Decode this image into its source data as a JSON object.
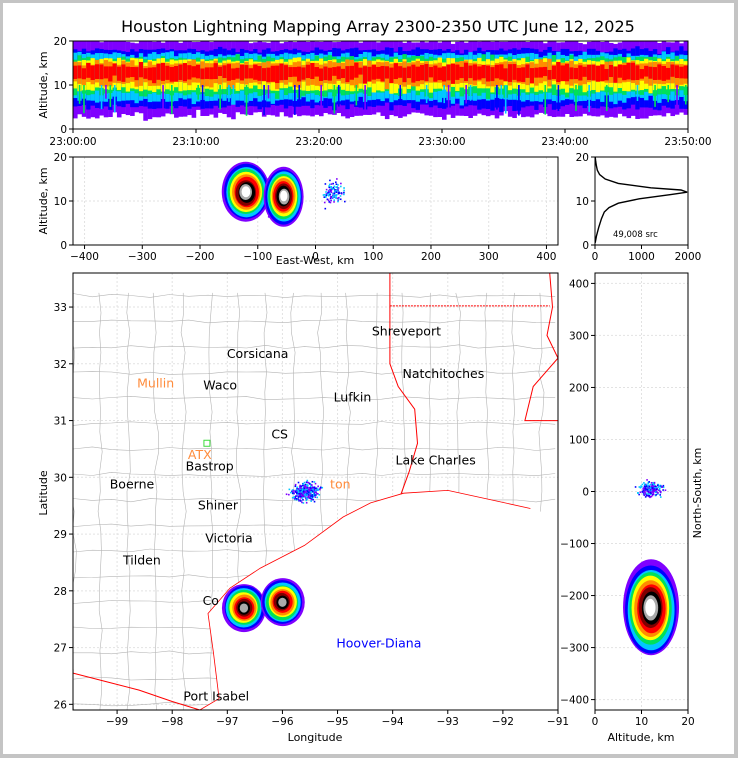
{
  "title": "Houston Lightning Mapping Array 2300-2350 UTC June 12, 2025",
  "colors": {
    "background": "#ffffff",
    "frame": "#c4c4c4",
    "state_border": "#ff0000",
    "county_border": "#b4b4b4",
    "coast": "#ff0000",
    "station_label": "#ff8c3c",
    "station_marker": "#3cdc3c",
    "hoover_label": "#0000ff",
    "density_scale": [
      "#7f00ff",
      "#0000ff",
      "#00c8ff",
      "#00e05a",
      "#ffff00",
      "#ff8c00",
      "#ff0000",
      "#800000",
      "#000000",
      "#aaaaaa",
      "#ffffff"
    ]
  },
  "chart_data": [
    {
      "id": "time_altitude",
      "type": "heatmap",
      "ylabel": "Altitude, km",
      "ylim": [
        0,
        20
      ],
      "yticks": [
        "0",
        "10",
        "20"
      ],
      "xticks": [
        "23:00:00",
        "23:10:00",
        "23:20:00",
        "23:30:00",
        "23:40:00",
        "23:50:00"
      ],
      "x_range_minutes": [
        0,
        50
      ],
      "core_altitude_km": [
        9,
        16
      ],
      "peak_altitude_km": 12.5
    },
    {
      "id": "ew_altitude",
      "type": "heatmap",
      "xlabel": "East-West, km",
      "ylabel": "Altitude, km",
      "xlim": [
        -420,
        420
      ],
      "ylim": [
        0,
        20
      ],
      "xticks": [
        "−400",
        "−300",
        "−200",
        "−100",
        "0",
        "100",
        "200",
        "300",
        "400"
      ],
      "yticks": [
        "0",
        "10",
        "20"
      ],
      "cores_km": [
        {
          "x": -120,
          "alt": 12
        },
        {
          "x": -55,
          "alt": 11
        }
      ],
      "secondary_x_range_km": [
        -10,
        70
      ]
    },
    {
      "id": "altitude_histogram",
      "type": "line",
      "annotation": "49,008 src",
      "xlim": [
        0,
        2000
      ],
      "ylim": [
        0,
        20
      ],
      "xticks": [
        "0",
        "1000",
        "2000"
      ],
      "yticks": [
        "0",
        "10",
        "20"
      ],
      "profile": [
        {
          "alt": 0.5,
          "count": 5
        },
        {
          "alt": 2,
          "count": 30
        },
        {
          "alt": 4,
          "count": 80
        },
        {
          "alt": 6,
          "count": 140
        },
        {
          "alt": 7.5,
          "count": 200
        },
        {
          "alt": 8.5,
          "count": 300
        },
        {
          "alt": 9.5,
          "count": 500
        },
        {
          "alt": 10.5,
          "count": 950
        },
        {
          "alt": 11.5,
          "count": 1650
        },
        {
          "alt": 12,
          "count": 1980
        },
        {
          "alt": 12.5,
          "count": 1850
        },
        {
          "alt": 13,
          "count": 1200
        },
        {
          "alt": 14,
          "count": 500
        },
        {
          "alt": 15,
          "count": 220
        },
        {
          "alt": 16,
          "count": 100
        },
        {
          "alt": 17,
          "count": 50
        },
        {
          "alt": 18,
          "count": 30
        },
        {
          "alt": 19,
          "count": 15
        },
        {
          "alt": 20,
          "count": 5
        }
      ]
    },
    {
      "id": "plan_view",
      "type": "heatmap",
      "xlabel": "Longitude",
      "ylabel": "Latitude",
      "xlim": [
        -99.8,
        -91
      ],
      "ylim": [
        25.9,
        33.6
      ],
      "xticks": [
        "−99",
        "−98",
        "−97",
        "−96",
        "−95",
        "−94",
        "−93",
        "−92",
        "−91"
      ],
      "yticks": [
        "26",
        "27",
        "28",
        "29",
        "30",
        "31",
        "32",
        "33"
      ],
      "storms": [
        {
          "lon": -96.7,
          "lat": 27.7,
          "intensity": "high"
        },
        {
          "lon": -96.0,
          "lat": 27.8,
          "intensity": "high"
        },
        {
          "lon": -95.6,
          "lat": 29.75,
          "intensity": "low"
        }
      ],
      "cities": [
        {
          "name": "Shreveport",
          "lon": -93.75,
          "lat": 32.5
        },
        {
          "name": "Corsicana",
          "lon": -96.45,
          "lat": 32.1
        },
        {
          "name": "Natchitoches",
          "lon": -93.08,
          "lat": 31.75
        },
        {
          "name": "Waco",
          "lon": -97.13,
          "lat": 31.55
        },
        {
          "name": "Lufkin",
          "lon": -94.73,
          "lat": 31.34
        },
        {
          "name": "Lake Charles",
          "lon": -93.22,
          "lat": 30.23
        },
        {
          "name": "Bastrop",
          "lon": -97.32,
          "lat": 30.12
        },
        {
          "name": "Boerne",
          "lon": -98.73,
          "lat": 29.8
        },
        {
          "name": "Shiner",
          "lon": -97.17,
          "lat": 29.43
        },
        {
          "name": "Victoria",
          "lon": -96.97,
          "lat": 28.85
        },
        {
          "name": "Tilden",
          "lon": -98.55,
          "lat": 28.46
        },
        {
          "name": "Port Isabel",
          "lon": -97.2,
          "lat": 26.07
        }
      ],
      "partial_labels": [
        {
          "name": "CS",
          "lon": -96.05,
          "lat": 30.68,
          "color": "#000000"
        },
        {
          "name": "Co",
          "lon": -97.3,
          "lat": 27.75,
          "color": "#000000"
        },
        {
          "name": "ton",
          "lon": -94.95,
          "lat": 29.8,
          "color": "#ff8c3c"
        }
      ],
      "stations": [
        {
          "name": "Mullin",
          "lon": -98.3,
          "lat": 31.58
        },
        {
          "name": "ATX",
          "lon": -97.5,
          "lat": 30.32
        }
      ],
      "station_markers": [
        {
          "lon": -97.37,
          "lat": 30.6
        }
      ],
      "label_hoover": {
        "name": "Hoover-Diana",
        "lon": -94.25,
        "lat": 27.0
      }
    },
    {
      "id": "altitude_ns",
      "type": "heatmap",
      "xlabel": "Altitude, km",
      "ylabel": "North-South, km",
      "xlim": [
        0,
        20
      ],
      "ylim": [
        -420,
        420
      ],
      "xticks": [
        "0",
        "10",
        "20"
      ],
      "yticks": [
        "−400",
        "−300",
        "−200",
        "−100",
        "0",
        "100",
        "200",
        "300",
        "400"
      ],
      "cores_km": [
        {
          "alt": 12,
          "ns": -225
        }
      ],
      "secondary_ns_range_km": [
        -30,
        40
      ]
    }
  ]
}
